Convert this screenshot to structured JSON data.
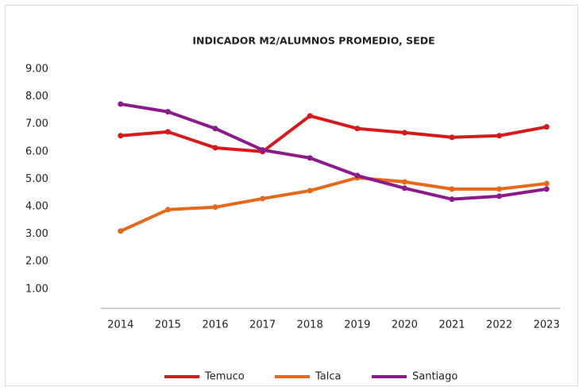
{
  "chart_data": {
    "type": "line",
    "title": "INDICADOR M2/ALUMNOS PROMEDIO, SEDE",
    "categories": [
      "2014",
      "2015",
      "2016",
      "2017",
      "2018",
      "2019",
      "2020",
      "2021",
      "2022",
      "2023"
    ],
    "series": [
      {
        "name": "Temuco",
        "color": "#d7191c",
        "values": [
          6.58,
          6.72,
          6.14,
          6.0,
          7.3,
          6.84,
          6.69,
          6.52,
          6.58,
          6.9
        ]
      },
      {
        "name": "Talca",
        "color": "#e8681a",
        "values": [
          3.11,
          3.89,
          3.98,
          4.29,
          4.58,
          5.05,
          4.9,
          4.64,
          4.64,
          4.84
        ]
      },
      {
        "name": "Santiago",
        "color": "#8b1a8b",
        "values": [
          7.73,
          7.45,
          6.84,
          6.06,
          5.77,
          5.13,
          4.67,
          4.27,
          4.38,
          4.64
        ]
      }
    ],
    "ylim": [
      0.3,
      9
    ],
    "yticks": [
      {
        "value": 1,
        "label": "1.00"
      },
      {
        "value": 2,
        "label": "2.00"
      },
      {
        "value": 3,
        "label": "3.00"
      },
      {
        "value": 4,
        "label": "4.00"
      },
      {
        "value": 5,
        "label": "5.00"
      },
      {
        "value": 6,
        "label": "6.00"
      },
      {
        "value": 7,
        "label": "7.00"
      },
      {
        "value": 8,
        "label": "8.00"
      },
      {
        "value": 9,
        "label": "9.00"
      }
    ],
    "legend": "bottom"
  }
}
